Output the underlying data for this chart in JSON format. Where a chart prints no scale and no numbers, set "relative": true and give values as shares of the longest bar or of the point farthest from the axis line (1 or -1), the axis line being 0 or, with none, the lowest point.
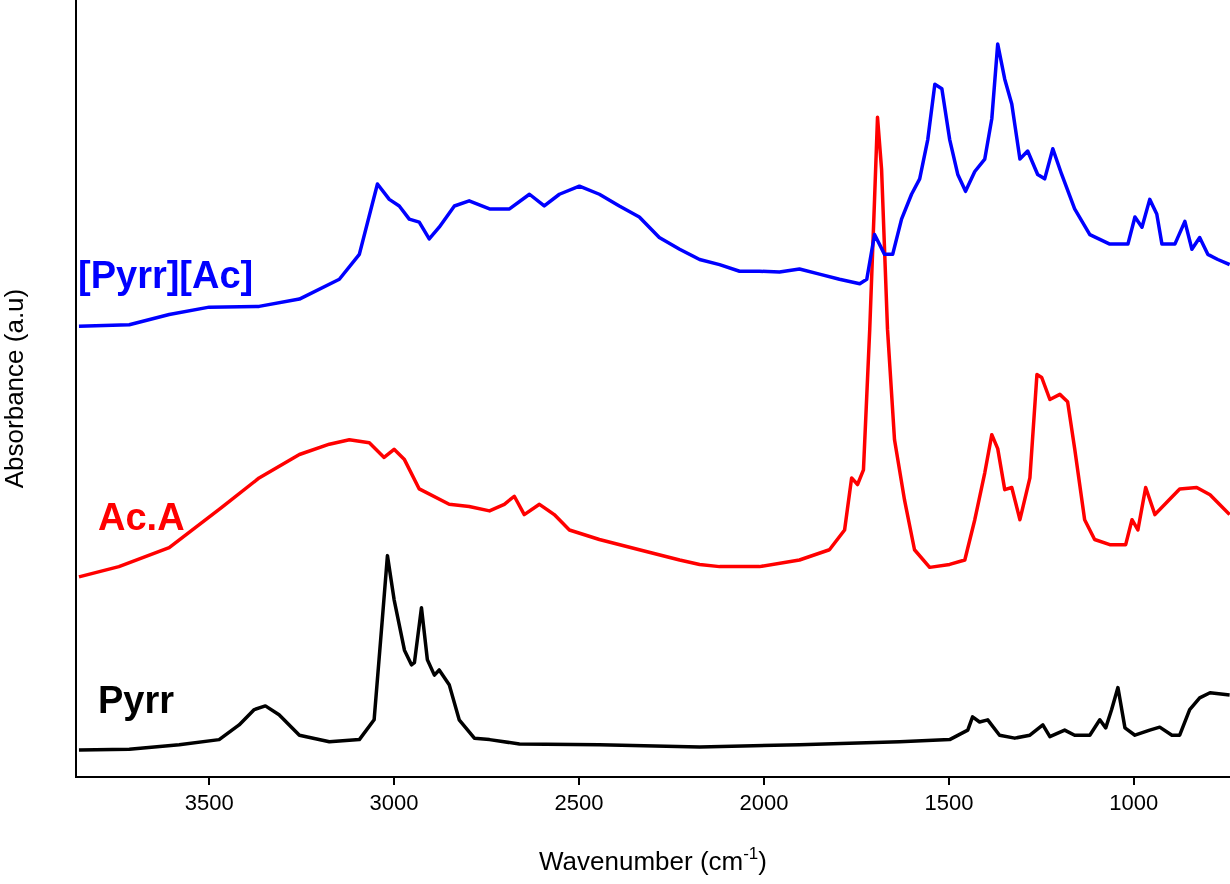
{
  "chart_data": {
    "type": "line",
    "xlabel": "Wavenumber (cm$^{-1}$)",
    "ylabel": "Absorbance (a.u)",
    "relative": true,
    "xlim": [
      3860,
      740
    ],
    "xticks": [
      3500,
      3000,
      2500,
      2000,
      1500,
      1000
    ],
    "grid": false,
    "legend": false,
    "marker": "none",
    "line_style": "solid",
    "series": [
      {
        "name": "[Pyrr][Ac]",
        "color": "#0000ff",
        "x": [
          3852,
          3716,
          3608,
          3500,
          3365,
          3256,
          3148,
          3094,
          3045,
          3013,
          2986,
          2959,
          2932,
          2905,
          2878,
          2837,
          2797,
          2742,
          2688,
          2634,
          2594,
          2553,
          2499,
          2445,
          2391,
          2337,
          2283,
          2228,
          2174,
          2120,
          2066,
          2012,
          1958,
          1904,
          1850,
          1796,
          1741,
          1722,
          1701,
          1674,
          1652,
          1628,
          1601,
          1579,
          1557,
          1538,
          1519,
          1498,
          1476,
          1455,
          1430,
          1403,
          1384,
          1368,
          1349,
          1330,
          1308,
          1287,
          1260,
          1241,
          1219,
          1195,
          1160,
          1119,
          1065,
          1016,
          997,
          978,
          957,
          938,
          924,
          889,
          862,
          843,
          822,
          800,
          773,
          741
        ],
        "values": [
          0.615,
          0.617,
          0.631,
          0.641,
          0.642,
          0.652,
          0.679,
          0.713,
          0.809,
          0.788,
          0.779,
          0.761,
          0.757,
          0.734,
          0.75,
          0.779,
          0.786,
          0.775,
          0.775,
          0.795,
          0.779,
          0.795,
          0.806,
          0.795,
          0.779,
          0.764,
          0.736,
          0.72,
          0.706,
          0.699,
          0.69,
          0.69,
          0.689,
          0.693,
          0.686,
          0.679,
          0.673,
          0.679,
          0.74,
          0.713,
          0.713,
          0.761,
          0.795,
          0.816,
          0.87,
          0.945,
          0.939,
          0.87,
          0.822,
          0.799,
          0.826,
          0.843,
          0.898,
          1.0,
          0.952,
          0.918,
          0.843,
          0.854,
          0.822,
          0.816,
          0.857,
          0.822,
          0.775,
          0.74,
          0.727,
          0.727,
          0.764,
          0.75,
          0.788,
          0.768,
          0.727,
          0.727,
          0.758,
          0.72,
          0.736,
          0.713,
          0.706,
          0.699
        ]
      },
      {
        "name": "Ac.A",
        "color": "#ff0000",
        "x": [
          3852,
          3744,
          3608,
          3473,
          3365,
          3256,
          3175,
          3121,
          3067,
          3027,
          3000,
          2972,
          2932,
          2851,
          2797,
          2742,
          2702,
          2675,
          2648,
          2607,
          2567,
          2526,
          2445,
          2337,
          2228,
          2174,
          2120,
          2012,
          1904,
          1823,
          1782,
          1763,
          1747,
          1731,
          1714,
          1701,
          1693,
          1682,
          1666,
          1647,
          1620,
          1593,
          1552,
          1498,
          1457,
          1430,
          1403,
          1384,
          1368,
          1349,
          1330,
          1308,
          1281,
          1262,
          1249,
          1227,
          1200,
          1179,
          1160,
          1133,
          1106,
          1065,
          1022,
          1005,
          989,
          968,
          943,
          903,
          876,
          830,
          794,
          741
        ],
        "values": [
          0.273,
          0.287,
          0.313,
          0.365,
          0.408,
          0.44,
          0.454,
          0.46,
          0.456,
          0.436,
          0.447,
          0.433,
          0.393,
          0.372,
          0.369,
          0.363,
          0.372,
          0.383,
          0.358,
          0.372,
          0.358,
          0.337,
          0.324,
          0.31,
          0.296,
          0.29,
          0.287,
          0.287,
          0.296,
          0.31,
          0.337,
          0.408,
          0.399,
          0.419,
          0.611,
          0.788,
          0.9,
          0.829,
          0.611,
          0.46,
          0.378,
          0.31,
          0.286,
          0.29,
          0.296,
          0.351,
          0.415,
          0.467,
          0.448,
          0.392,
          0.395,
          0.351,
          0.408,
          0.549,
          0.545,
          0.515,
          0.522,
          0.512,
          0.448,
          0.351,
          0.324,
          0.317,
          0.317,
          0.351,
          0.337,
          0.395,
          0.358,
          0.379,
          0.393,
          0.395,
          0.385,
          0.358
        ]
      },
      {
        "name": "Pyrr",
        "color": "#000000",
        "x": [
          3852,
          3716,
          3581,
          3473,
          3419,
          3378,
          3348,
          3311,
          3256,
          3175,
          3094,
          3054,
          3032,
          3018,
          3000,
          2972,
          2953,
          2945,
          2926,
          2910,
          2891,
          2878,
          2851,
          2824,
          2783,
          2742,
          2661,
          2445,
          2174,
          1904,
          1633,
          1498,
          1449,
          1436,
          1417,
          1395,
          1363,
          1322,
          1281,
          1246,
          1227,
          1187,
          1160,
          1119,
          1092,
          1076,
          1060,
          1043,
          1024,
          997,
          957,
          930,
          897,
          876,
          849,
          822,
          794,
          741
        ],
        "values": [
          0.037,
          0.038,
          0.044,
          0.051,
          0.071,
          0.092,
          0.097,
          0.085,
          0.057,
          0.048,
          0.051,
          0.078,
          0.214,
          0.302,
          0.242,
          0.173,
          0.153,
          0.156,
          0.231,
          0.16,
          0.139,
          0.146,
          0.126,
          0.078,
          0.053,
          0.051,
          0.045,
          0.044,
          0.041,
          0.044,
          0.048,
          0.051,
          0.064,
          0.082,
          0.075,
          0.078,
          0.057,
          0.053,
          0.057,
          0.071,
          0.055,
          0.064,
          0.057,
          0.057,
          0.078,
          0.067,
          0.092,
          0.122,
          0.067,
          0.057,
          0.064,
          0.068,
          0.057,
          0.057,
          0.092,
          0.108,
          0.115,
          0.112
        ]
      }
    ]
  }
}
